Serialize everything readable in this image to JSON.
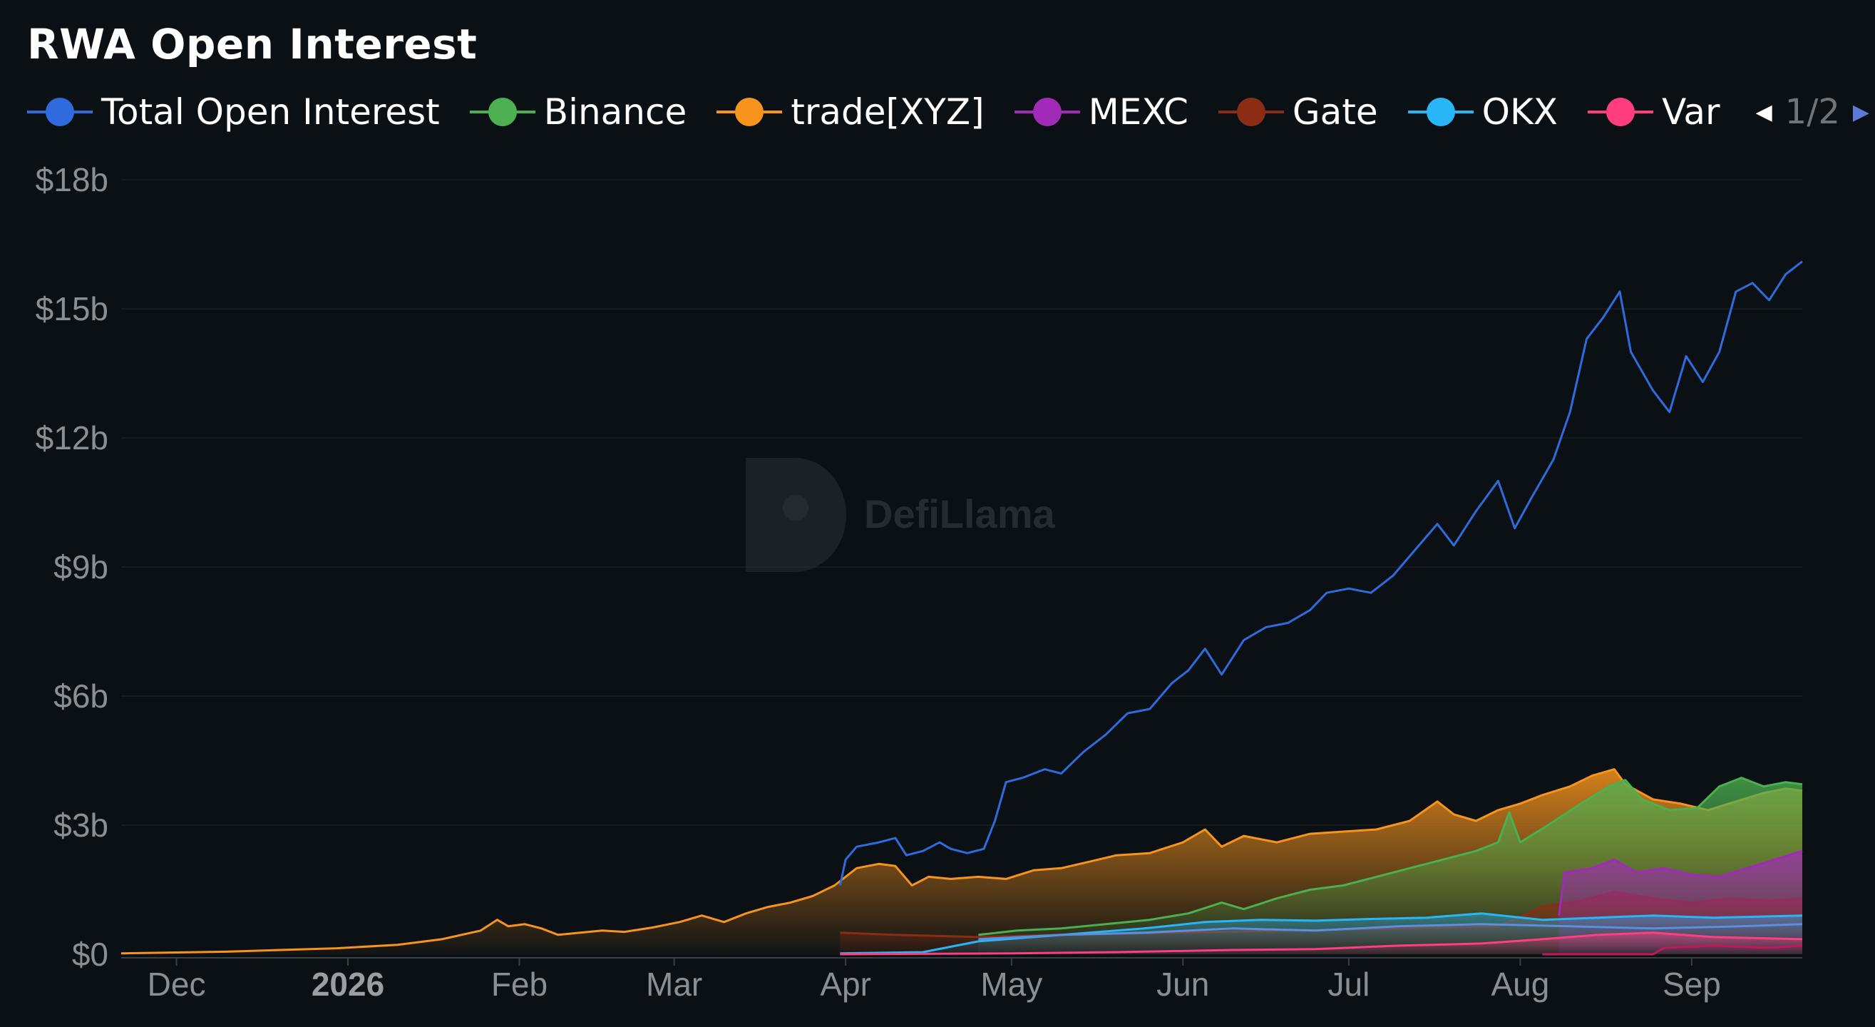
{
  "title": "RWA Open Interest",
  "legend": {
    "items": [
      {
        "label": "Total Open Interest",
        "color": "#2f6bdc"
      },
      {
        "label": "Binance",
        "color": "#4caf50"
      },
      {
        "label": "trade[XYZ]",
        "color": "#f7941d"
      },
      {
        "label": "MEXC",
        "color": "#a12bb8"
      },
      {
        "label": "Gate",
        "color": "#8a2d14"
      },
      {
        "label": "OKX",
        "color": "#29b6f6"
      },
      {
        "label": "Var",
        "color": "#ff3d7f"
      }
    ],
    "page": "1/2"
  },
  "watermark": "DefiLlama",
  "chart_data": {
    "type": "area",
    "y_ticks": [
      "$0",
      "$3b",
      "$6b",
      "$9b",
      "$12b",
      "$15b",
      "$18b"
    ],
    "ylim": [
      0,
      18
    ],
    "y_unit": "billions USD",
    "x_ticks": [
      "Dec",
      "2026",
      "Feb",
      "Mar",
      "Apr",
      "May",
      "Jun",
      "Jul",
      "Aug",
      "Sep"
    ],
    "bold_x_tick": "2026",
    "x_range": [
      "2025-11-21",
      "2026-09-21"
    ],
    "grid": true,
    "legend_position": "top",
    "series": [
      {
        "name": "Total Open Interest",
        "color": "#2f6bdc",
        "line": true,
        "area": false,
        "points": [
          [
            "2026-03-31",
            1.6
          ],
          [
            "2026-04-01",
            2.2
          ],
          [
            "2026-04-03",
            2.5
          ],
          [
            "2026-04-07",
            2.6
          ],
          [
            "2026-04-10",
            2.7
          ],
          [
            "2026-04-12",
            2.3
          ],
          [
            "2026-04-15",
            2.4
          ],
          [
            "2026-04-18",
            2.6
          ],
          [
            "2026-04-20",
            2.45
          ],
          [
            "2026-04-23",
            2.35
          ],
          [
            "2026-04-26",
            2.45
          ],
          [
            "2026-04-28",
            3.1
          ],
          [
            "2026-04-30",
            4.0
          ],
          [
            "2026-05-03",
            4.1
          ],
          [
            "2026-05-07",
            4.3
          ],
          [
            "2026-05-10",
            4.2
          ],
          [
            "2026-05-14",
            4.7
          ],
          [
            "2026-05-18",
            5.1
          ],
          [
            "2026-05-22",
            5.6
          ],
          [
            "2026-05-26",
            5.7
          ],
          [
            "2026-05-30",
            6.3
          ],
          [
            "2026-06-02",
            6.6
          ],
          [
            "2026-06-05",
            7.1
          ],
          [
            "2026-06-08",
            6.5
          ],
          [
            "2026-06-12",
            7.3
          ],
          [
            "2026-06-16",
            7.6
          ],
          [
            "2026-06-20",
            7.7
          ],
          [
            "2026-06-24",
            8.0
          ],
          [
            "2026-06-27",
            8.4
          ],
          [
            "2026-07-01",
            8.5
          ],
          [
            "2026-07-05",
            8.4
          ],
          [
            "2026-07-09",
            8.8
          ],
          [
            "2026-07-13",
            9.4
          ],
          [
            "2026-07-17",
            10.0
          ],
          [
            "2026-07-20",
            9.5
          ],
          [
            "2026-07-24",
            10.3
          ],
          [
            "2026-07-28",
            11.0
          ],
          [
            "2026-07-31",
            9.9
          ],
          [
            "2026-08-03",
            10.6
          ],
          [
            "2026-08-07",
            11.5
          ],
          [
            "2026-08-10",
            12.6
          ],
          [
            "2026-08-13",
            14.3
          ],
          [
            "2026-08-16",
            14.8
          ],
          [
            "2026-08-19",
            15.4
          ],
          [
            "2026-08-21",
            14.0
          ],
          [
            "2026-08-25",
            13.1
          ],
          [
            "2026-08-28",
            12.6
          ],
          [
            "2026-08-31",
            13.9
          ],
          [
            "2026-09-03",
            13.3
          ],
          [
            "2026-09-06",
            14.0
          ],
          [
            "2026-09-09",
            15.4
          ],
          [
            "2026-09-12",
            15.6
          ],
          [
            "2026-09-15",
            15.2
          ],
          [
            "2026-09-18",
            15.8
          ],
          [
            "2026-09-21",
            16.1
          ]
        ]
      },
      {
        "name": "trade[XYZ]",
        "color": "#f7941d",
        "line": true,
        "area": true,
        "points": [
          [
            "2025-11-21",
            0.02
          ],
          [
            "2025-12-10",
            0.06
          ],
          [
            "2025-12-30",
            0.14
          ],
          [
            "2026-01-10",
            0.22
          ],
          [
            "2026-01-18",
            0.35
          ],
          [
            "2026-01-25",
            0.55
          ],
          [
            "2026-01-28",
            0.8
          ],
          [
            "2026-01-30",
            0.65
          ],
          [
            "2026-02-02",
            0.7
          ],
          [
            "2026-02-05",
            0.6
          ],
          [
            "2026-02-08",
            0.45
          ],
          [
            "2026-02-12",
            0.5
          ],
          [
            "2026-02-16",
            0.55
          ],
          [
            "2026-02-20",
            0.52
          ],
          [
            "2026-02-25",
            0.62
          ],
          [
            "2026-03-02",
            0.75
          ],
          [
            "2026-03-06",
            0.9
          ],
          [
            "2026-03-10",
            0.75
          ],
          [
            "2026-03-14",
            0.95
          ],
          [
            "2026-03-18",
            1.1
          ],
          [
            "2026-03-22",
            1.2
          ],
          [
            "2026-03-26",
            1.35
          ],
          [
            "2026-03-30",
            1.6
          ],
          [
            "2026-04-03",
            2.0
          ],
          [
            "2026-04-07",
            2.1
          ],
          [
            "2026-04-10",
            2.05
          ],
          [
            "2026-04-13",
            1.6
          ],
          [
            "2026-04-16",
            1.8
          ],
          [
            "2026-04-20",
            1.75
          ],
          [
            "2026-04-25",
            1.8
          ],
          [
            "2026-04-30",
            1.75
          ],
          [
            "2026-05-05",
            1.95
          ],
          [
            "2026-05-10",
            2.0
          ],
          [
            "2026-05-15",
            2.15
          ],
          [
            "2026-05-20",
            2.3
          ],
          [
            "2026-05-26",
            2.35
          ],
          [
            "2026-06-01",
            2.6
          ],
          [
            "2026-06-05",
            2.9
          ],
          [
            "2026-06-08",
            2.5
          ],
          [
            "2026-06-12",
            2.75
          ],
          [
            "2026-06-18",
            2.6
          ],
          [
            "2026-06-24",
            2.8
          ],
          [
            "2026-06-30",
            2.85
          ],
          [
            "2026-07-06",
            2.9
          ],
          [
            "2026-07-12",
            3.1
          ],
          [
            "2026-07-17",
            3.55
          ],
          [
            "2026-07-20",
            3.25
          ],
          [
            "2026-07-24",
            3.1
          ],
          [
            "2026-07-28",
            3.35
          ],
          [
            "2026-08-01",
            3.5
          ],
          [
            "2026-08-05",
            3.7
          ],
          [
            "2026-08-10",
            3.9
          ],
          [
            "2026-08-14",
            4.15
          ],
          [
            "2026-08-18",
            4.3
          ],
          [
            "2026-08-20",
            3.95
          ],
          [
            "2026-08-25",
            3.6
          ],
          [
            "2026-08-30",
            3.5
          ],
          [
            "2026-09-04",
            3.35
          ],
          [
            "2026-09-09",
            3.55
          ],
          [
            "2026-09-14",
            3.75
          ],
          [
            "2026-09-18",
            3.85
          ],
          [
            "2026-09-21",
            3.8
          ]
        ]
      },
      {
        "name": "Binance",
        "color": "#4caf50",
        "line": true,
        "area": true,
        "points": [
          [
            "2026-04-25",
            0.45
          ],
          [
            "2026-05-02",
            0.55
          ],
          [
            "2026-05-10",
            0.6
          ],
          [
            "2026-05-18",
            0.7
          ],
          [
            "2026-05-26",
            0.8
          ],
          [
            "2026-06-02",
            0.95
          ],
          [
            "2026-06-08",
            1.2
          ],
          [
            "2026-06-12",
            1.05
          ],
          [
            "2026-06-18",
            1.3
          ],
          [
            "2026-06-24",
            1.5
          ],
          [
            "2026-06-30",
            1.6
          ],
          [
            "2026-07-06",
            1.8
          ],
          [
            "2026-07-12",
            2.0
          ],
          [
            "2026-07-18",
            2.2
          ],
          [
            "2026-07-24",
            2.4
          ],
          [
            "2026-07-28",
            2.6
          ],
          [
            "2026-07-30",
            3.3
          ],
          [
            "2026-08-01",
            2.6
          ],
          [
            "2026-08-06",
            3.0
          ],
          [
            "2026-08-12",
            3.5
          ],
          [
            "2026-08-17",
            3.9
          ],
          [
            "2026-08-20",
            4.05
          ],
          [
            "2026-08-23",
            3.6
          ],
          [
            "2026-08-28",
            3.35
          ],
          [
            "2026-09-02",
            3.4
          ],
          [
            "2026-09-06",
            3.9
          ],
          [
            "2026-09-10",
            4.1
          ],
          [
            "2026-09-14",
            3.9
          ],
          [
            "2026-09-18",
            4.0
          ],
          [
            "2026-09-21",
            3.95
          ]
        ]
      },
      {
        "name": "MEXC",
        "color": "#a12bb8",
        "line": true,
        "area": true,
        "points": [
          [
            "2026-08-08",
            0.9
          ],
          [
            "2026-08-09",
            1.9
          ],
          [
            "2026-08-14",
            2.0
          ],
          [
            "2026-08-18",
            2.2
          ],
          [
            "2026-08-22",
            1.9
          ],
          [
            "2026-08-27",
            2.0
          ],
          [
            "2026-09-01",
            1.85
          ],
          [
            "2026-09-06",
            1.8
          ],
          [
            "2026-09-11",
            2.0
          ],
          [
            "2026-09-16",
            2.2
          ],
          [
            "2026-09-21",
            2.4
          ]
        ]
      },
      {
        "name": "Gate",
        "color": "#8a2d14",
        "line": true,
        "area": true,
        "points": [
          [
            "2026-03-31",
            0.5
          ],
          [
            "2026-04-10",
            0.45
          ],
          [
            "2026-04-25",
            0.4
          ],
          [
            "2026-05-10",
            0.45
          ],
          [
            "2026-05-30",
            0.5
          ],
          [
            "2026-06-20",
            0.55
          ],
          [
            "2026-07-10",
            0.6
          ],
          [
            "2026-07-28",
            0.65
          ],
          [
            "2026-08-05",
            1.1
          ],
          [
            "2026-08-12",
            1.25
          ],
          [
            "2026-08-18",
            1.45
          ],
          [
            "2026-08-25",
            1.3
          ],
          [
            "2026-09-01",
            1.2
          ],
          [
            "2026-09-08",
            1.3
          ],
          [
            "2026-09-15",
            1.25
          ],
          [
            "2026-09-21",
            1.3
          ]
        ]
      },
      {
        "name": "OKX",
        "color": "#29b6f6",
        "line": true,
        "area": true,
        "points": [
          [
            "2026-03-31",
            0.02
          ],
          [
            "2026-04-15",
            0.05
          ],
          [
            "2026-04-25",
            0.3
          ],
          [
            "2026-05-05",
            0.4
          ],
          [
            "2026-05-15",
            0.5
          ],
          [
            "2026-05-25",
            0.6
          ],
          [
            "2026-06-05",
            0.75
          ],
          [
            "2026-06-15",
            0.8
          ],
          [
            "2026-06-25",
            0.78
          ],
          [
            "2026-07-05",
            0.82
          ],
          [
            "2026-07-15",
            0.85
          ],
          [
            "2026-07-25",
            0.95
          ],
          [
            "2026-08-05",
            0.8
          ],
          [
            "2026-08-15",
            0.85
          ],
          [
            "2026-08-25",
            0.9
          ],
          [
            "2026-09-05",
            0.85
          ],
          [
            "2026-09-21",
            0.9
          ]
        ]
      },
      {
        "name": "Var",
        "color": "#ff3d7f",
        "line": true,
        "area": true,
        "points": [
          [
            "2026-03-31",
            0.0
          ],
          [
            "2026-05-01",
            0.02
          ],
          [
            "2026-05-20",
            0.05
          ],
          [
            "2026-06-10",
            0.1
          ],
          [
            "2026-06-25",
            0.12
          ],
          [
            "2026-07-10",
            0.2
          ],
          [
            "2026-07-25",
            0.25
          ],
          [
            "2026-08-05",
            0.35
          ],
          [
            "2026-08-15",
            0.45
          ],
          [
            "2026-08-25",
            0.5
          ],
          [
            "2026-09-05",
            0.4
          ],
          [
            "2026-09-21",
            0.35
          ]
        ]
      },
      {
        "name": "",
        "color": "#5b8fe0",
        "line": true,
        "area": false,
        "points": [
          [
            "2026-04-25",
            0.35
          ],
          [
            "2026-05-10",
            0.45
          ],
          [
            "2026-05-25",
            0.5
          ],
          [
            "2026-06-10",
            0.6
          ],
          [
            "2026-06-25",
            0.55
          ],
          [
            "2026-07-10",
            0.65
          ],
          [
            "2026-07-25",
            0.7
          ],
          [
            "2026-08-10",
            0.65
          ],
          [
            "2026-08-25",
            0.6
          ],
          [
            "2026-09-10",
            0.65
          ],
          [
            "2026-09-21",
            0.7
          ]
        ]
      },
      {
        "name": "",
        "color": "#c2185b",
        "line": true,
        "area": false,
        "points": [
          [
            "2026-08-05",
            0.0
          ],
          [
            "2026-08-25",
            0.0
          ],
          [
            "2026-08-27",
            0.15
          ],
          [
            "2026-09-05",
            0.2
          ],
          [
            "2026-09-15",
            0.15
          ],
          [
            "2026-09-21",
            0.2
          ]
        ]
      }
    ]
  }
}
